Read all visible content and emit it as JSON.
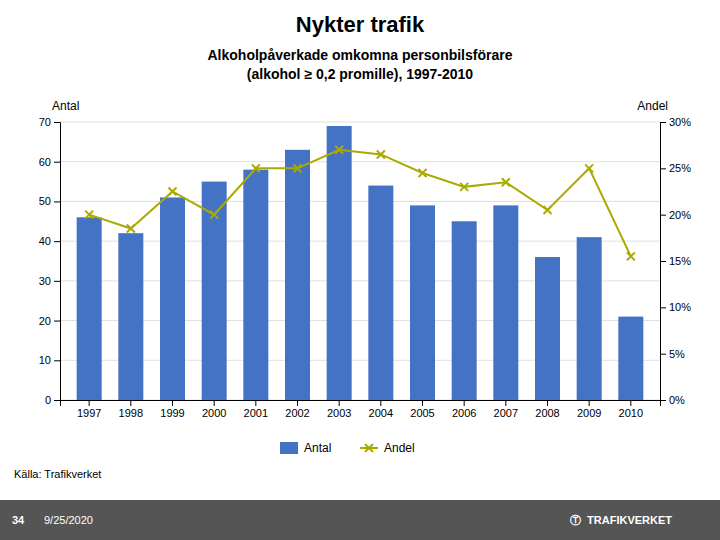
{
  "chart_data": {
    "type": "bar",
    "title": "Nykter trafik",
    "subtitle": "Alkoholpåverkade omkomna personbilsförare\n(alkohol ≥ 0,2 promille), 1997-2010",
    "source": "Källa: Trafikverket",
    "annotations": [
      "34",
      "9/25/2020",
      "Ⓣ  TRAFIKVERKET"
    ],
    "ylabel": "Antal",
    "y2label": "Andel",
    "categories": [
      1997,
      1998,
      1999,
      2000,
      2001,
      2002,
      2003,
      2004,
      2005,
      2006,
      2007,
      2008,
      2009,
      2010
    ],
    "series": [
      {
        "name": "Antal",
        "type": "bar",
        "color": "#4472C4",
        "values": [
          46,
          42,
          51,
          55,
          58,
          63,
          69,
          54,
          49,
          45,
          49,
          36,
          41,
          21
        ]
      },
      {
        "name": "Andel",
        "type": "line",
        "axis": "y2",
        "color": "#AAAA00",
        "marker": "x",
        "values": [
          20,
          18.5,
          22.5,
          20,
          25,
          25,
          27,
          26.5,
          24.5,
          23,
          23.5,
          20.5,
          25,
          15.5
        ]
      }
    ],
    "ylim": [
      0,
      70
    ],
    "yticks": [
      0,
      10,
      20,
      30,
      40,
      50,
      60,
      70
    ],
    "y2lim": [
      0,
      30
    ],
    "y2ticks": [
      {
        "value": 0,
        "label": "0%"
      },
      {
        "value": 5,
        "label": "5%"
      },
      {
        "value": 10,
        "label": "10%"
      },
      {
        "value": 15,
        "label": "15%"
      },
      {
        "value": 20,
        "label": "20%"
      },
      {
        "value": 25,
        "label": "25%"
      },
      {
        "value": 30,
        "label": "30%"
      }
    ],
    "grid": true,
    "legend": "bottom"
  }
}
